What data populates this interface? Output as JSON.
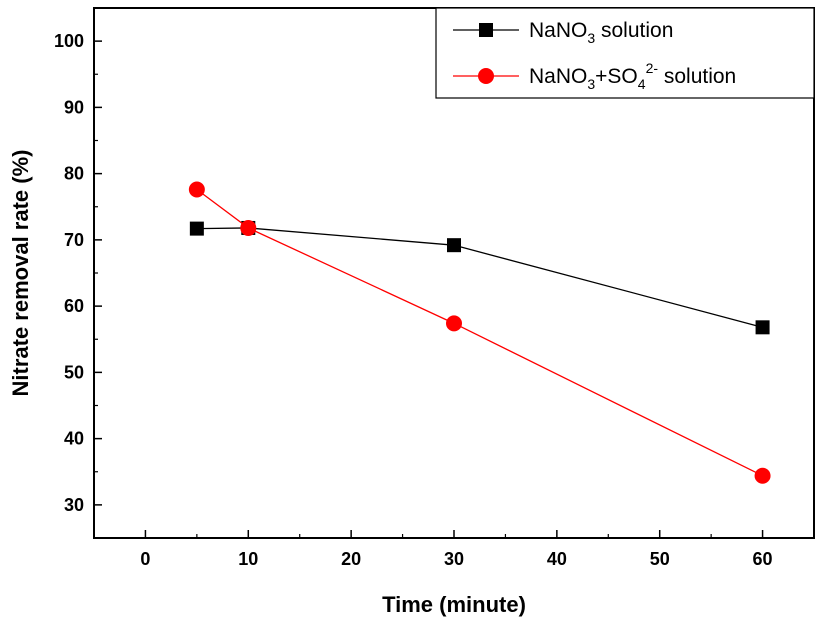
{
  "chart_data": {
    "type": "line",
    "xlabel": "Time (minute)",
    "ylabel": "Nitrate removal rate (%)",
    "xlim": [
      -5,
      65
    ],
    "ylim": [
      25,
      105
    ],
    "xticks": [
      0,
      10,
      20,
      30,
      40,
      50,
      60
    ],
    "yticks": [
      30,
      40,
      50,
      60,
      70,
      80,
      90,
      100
    ],
    "grid": false,
    "legend_position": "top-right",
    "series": [
      {
        "name": "NaNO3 solution",
        "legend_parts": {
          "base": "NaNO",
          "sub": "3",
          "rest": " solution"
        },
        "color": "#000000",
        "marker": "square",
        "x": [
          5,
          10,
          30,
          60
        ],
        "y": [
          71.7,
          71.8,
          69.2,
          56.8
        ]
      },
      {
        "name": "NaNO3+SO42- solution",
        "legend_parts": {
          "base": "NaNO",
          "sub": "3",
          "mid": "+SO",
          "sub2": "4",
          "sup": "2-",
          "rest": " solution"
        },
        "color": "#ff0000",
        "marker": "circle",
        "x": [
          5,
          10,
          30,
          60
        ],
        "y": [
          77.6,
          71.8,
          57.4,
          34.4
        ]
      }
    ]
  }
}
